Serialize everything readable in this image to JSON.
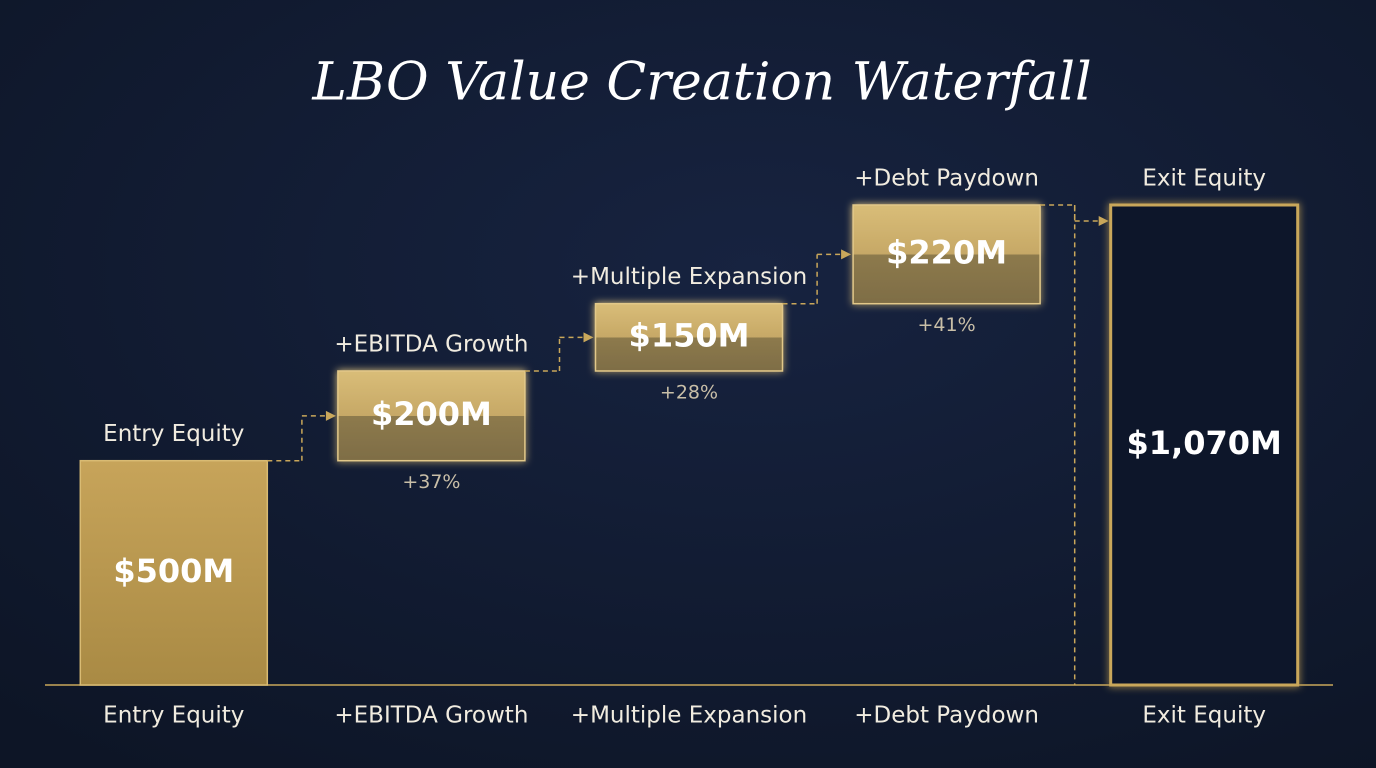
{
  "chart_data": {
    "type": "waterfall",
    "title": "LBO Value Creation Waterfall",
    "categories": [
      "Entry Equity",
      "+EBITDA Growth",
      "+Multiple Expansion",
      "+Debt Paydown",
      "Exit Equity"
    ],
    "measures": [
      "absolute",
      "relative",
      "relative",
      "relative",
      "total"
    ],
    "values": [
      500,
      200,
      150,
      220,
      1070
    ],
    "value_labels": [
      "$500M",
      "$200M",
      "$150M",
      "$220M",
      "$1,070M"
    ],
    "change_labels": [
      null,
      "+37%",
      "+28%",
      "+41%",
      null
    ],
    "color": "#c9a75a"
  }
}
